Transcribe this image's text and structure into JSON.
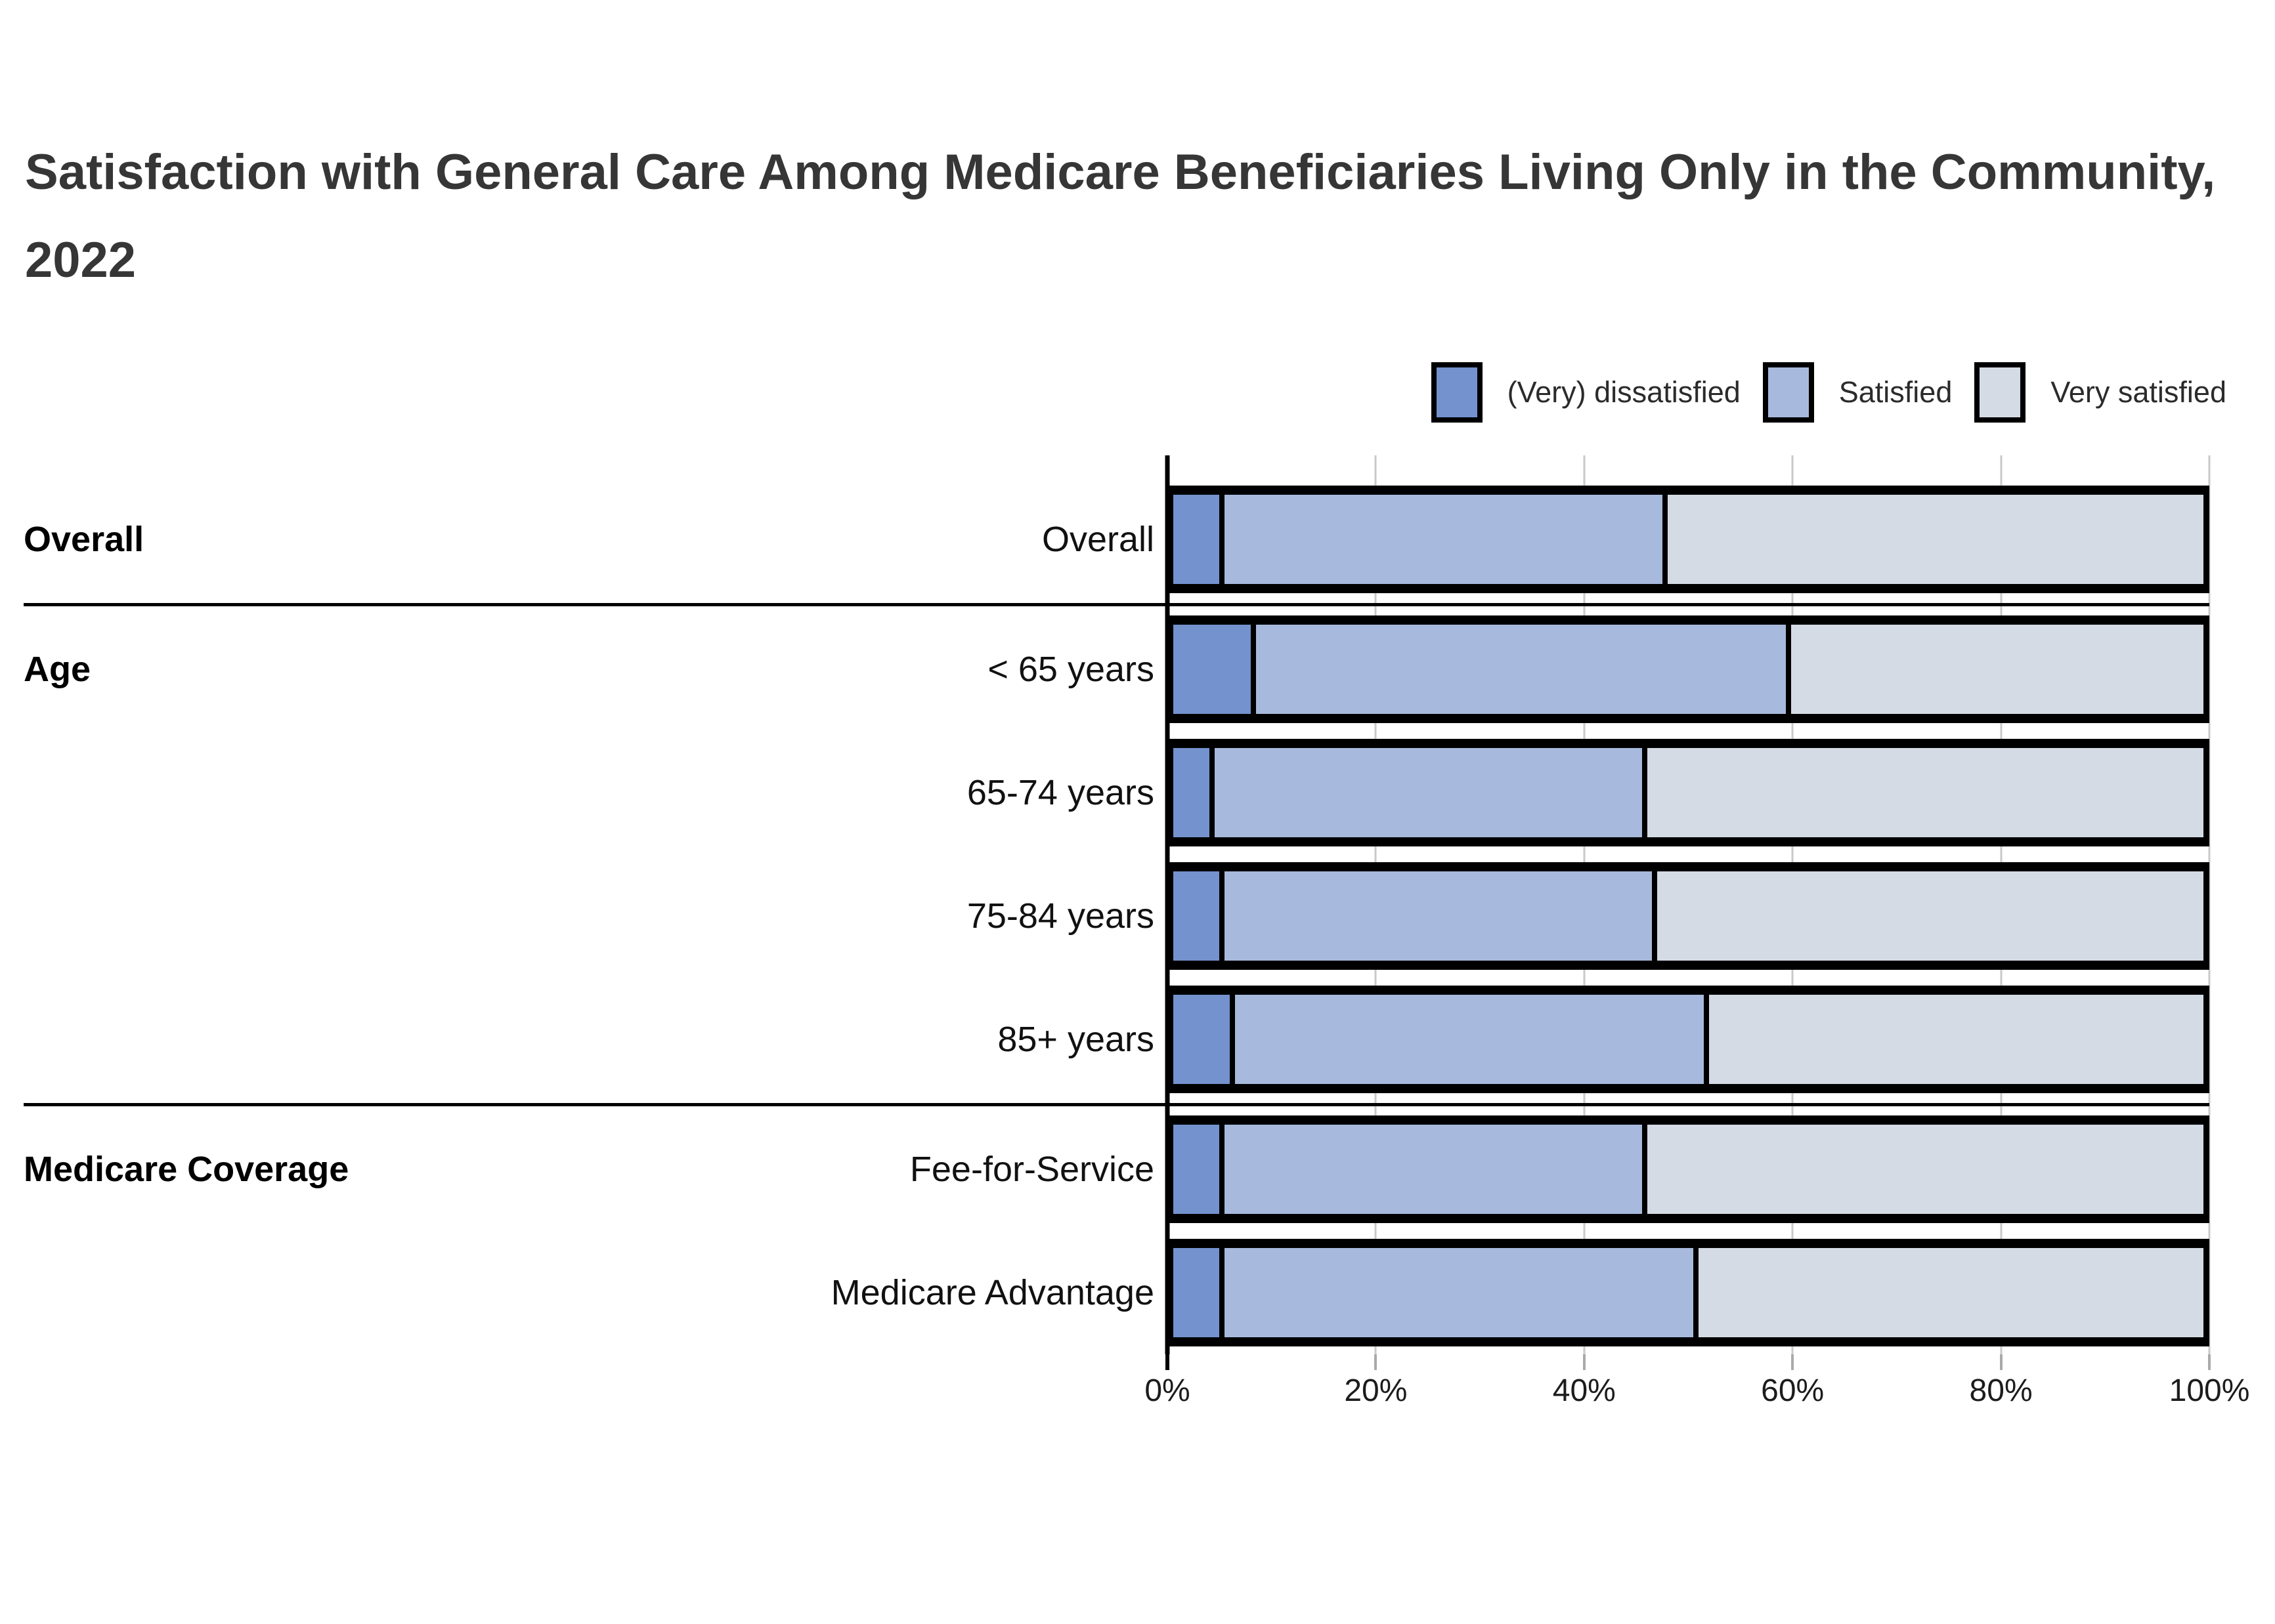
{
  "title": "Satisfaction with General Care Among Medicare Beneficiaries Living Only in the Community, 2022",
  "legend": [
    {
      "label": "(Very) dissatisfied",
      "color": "#7392ce"
    },
    {
      "label": "Satisfied",
      "color": "#a7badd"
    },
    {
      "label": "Very satisfied",
      "color": "#d5dbe5"
    }
  ],
  "colors": {
    "dissatisfied": "#7392ce",
    "satisfied": "#a7badd",
    "very_satisfied": "#d5dbe5",
    "segment_border": "#000000",
    "gridline": "#c9c9c9",
    "title_text": "#363636"
  },
  "chart_data": {
    "type": "bar",
    "orientation": "horizontal",
    "stacked": true,
    "title": "Satisfaction with General Care Among Medicare Beneficiaries Living Only in the Community, 2022",
    "xlabel": "",
    "ylabel": "",
    "xlim": [
      0,
      100
    ],
    "x_ticks": [
      "0%",
      "20%",
      "40%",
      "60%",
      "80%",
      "100%"
    ],
    "grid": true,
    "legend_position": "top-right",
    "categories": [
      "Overall",
      "< 65 years",
      "65-74 years",
      "75-84 years",
      "85+ years",
      "Fee-for-Service",
      "Medicare Advantage"
    ],
    "groups": [
      {
        "label": "Overall",
        "categories": [
          "Overall"
        ]
      },
      {
        "label": "Age",
        "categories": [
          "< 65 years",
          "65-74 years",
          "75-84 years",
          "85+ years"
        ]
      },
      {
        "label": "Medicare Coverage",
        "categories": [
          "Fee-for-Service",
          "Medicare Advantage"
        ]
      }
    ],
    "series": [
      {
        "name": "(Very) dissatisfied",
        "color": "#7392ce",
        "values": [
          5,
          8,
          4,
          5,
          6,
          5,
          5
        ]
      },
      {
        "name": "Satisfied",
        "color": "#a7badd",
        "values": [
          43,
          52,
          42,
          42,
          46,
          41,
          46
        ]
      },
      {
        "name": "Very satisfied",
        "color": "#d5dbe5",
        "values": [
          52,
          40,
          54,
          53,
          48,
          54,
          49
        ]
      }
    ]
  }
}
